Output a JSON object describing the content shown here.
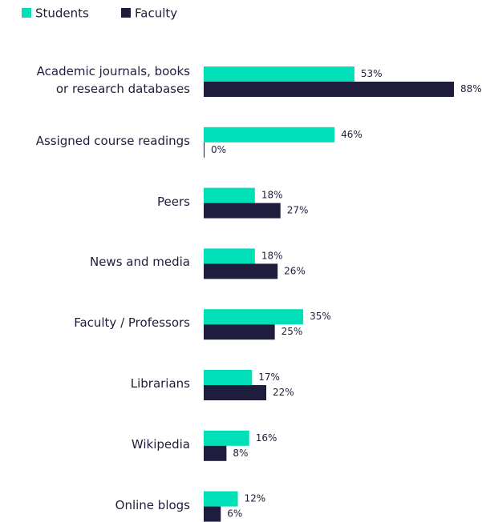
{
  "chart_data": {
    "type": "bar",
    "orientation": "horizontal",
    "categories": [
      "Academic journals, books\nor research databases",
      "Assigned course readings",
      "Peers",
      "News and media",
      "Faculty / Professors",
      "Librarians",
      "Wikipedia",
      "Online blogs"
    ],
    "series": [
      {
        "name": "Students",
        "color": "#00e0b8",
        "values": [
          53,
          46,
          18,
          18,
          35,
          17,
          16,
          12
        ],
        "value_labels": [
          "53%",
          "46%",
          "18%",
          "18%",
          "35%",
          "17%",
          "16%",
          "12%"
        ]
      },
      {
        "name": "Faculty",
        "color": "#1f1d3d",
        "values": [
          88,
          0,
          27,
          26,
          25,
          22,
          8,
          6
        ],
        "value_labels": [
          "88%",
          "0%",
          "27%",
          "26%",
          "25%",
          "22%",
          "8%",
          "6%"
        ]
      }
    ],
    "legend": "top-left"
  }
}
